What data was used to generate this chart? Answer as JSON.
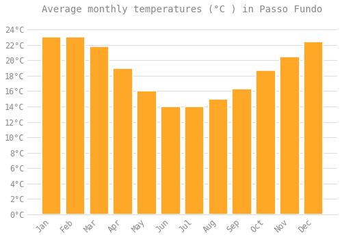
{
  "title": "Average monthly temperatures (°C ) in Passo Fundo",
  "months": [
    "Jan",
    "Feb",
    "Mar",
    "Apr",
    "May",
    "Jun",
    "Jul",
    "Aug",
    "Sep",
    "Oct",
    "Nov",
    "Dec"
  ],
  "values": [
    23.0,
    23.0,
    21.8,
    19.0,
    16.0,
    14.0,
    14.0,
    15.0,
    16.3,
    18.7,
    20.5,
    22.4
  ],
  "bar_color": "#FFA726",
  "bar_edge_color": "#FFFFFF",
  "background_color": "#FFFFFF",
  "grid_color": "#DDDDDD",
  "text_color": "#888888",
  "ylim": [
    0,
    25.5
  ],
  "yticks": [
    0,
    2,
    4,
    6,
    8,
    10,
    12,
    14,
    16,
    18,
    20,
    22,
    24
  ],
  "title_fontsize": 10,
  "tick_fontsize": 8.5,
  "bar_width": 0.82
}
